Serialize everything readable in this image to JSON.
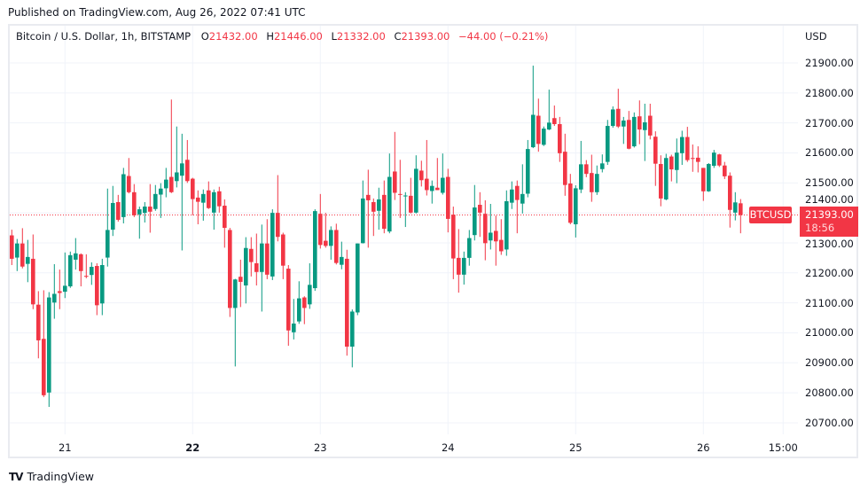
{
  "published": "Published on TradingView.com, Aug 26, 2022 07:41 UTC",
  "legend": {
    "symbol": "Bitcoin / U.S. Dollar, 1h, BITSTAMP",
    "o_label": "O",
    "o": "21432.00",
    "h_label": "H",
    "h": "21446.00",
    "l_label": "L",
    "l": "21332.00",
    "c_label": "C",
    "c": "21393.00",
    "change": "−44.00 (−0.21%)"
  },
  "price_axis": {
    "currency": "USD",
    "ticks": [
      "21900.00",
      "21800.00",
      "21700.00",
      "21600.00",
      "21500.00",
      "21400.00",
      "21300.00",
      "21200.00",
      "21100.00",
      "21000.00",
      "20900.00",
      "20800.00",
      "20700.00"
    ]
  },
  "time_axis": {
    "ticks": [
      {
        "label": "21",
        "bold": false
      },
      {
        "label": "22",
        "bold": true
      },
      {
        "label": "23",
        "bold": false
      },
      {
        "label": "24",
        "bold": false
      },
      {
        "label": "25",
        "bold": false
      },
      {
        "label": "26",
        "bold": false
      },
      {
        "label": "15:00",
        "bold": false
      }
    ]
  },
  "last_price": {
    "symbol_tag": "BTCUSD",
    "price": "21393.00",
    "countdown": "18:56",
    "value": 21393
  },
  "brand": "TradingView",
  "colors": {
    "up": "#089981",
    "down": "#f23645",
    "grid": "#f0f3fa",
    "text": "#131722"
  },
  "chart_data": {
    "type": "candlestick",
    "title": "Bitcoin / U.S. Dollar, 1h, BITSTAMP",
    "interval": "1h",
    "ylim": [
      20650,
      21950
    ],
    "grid": true,
    "ohlc_fields": [
      "open",
      "high",
      "low",
      "close"
    ],
    "candles": [
      [
        21325,
        21344,
        21226,
        21247
      ],
      [
        21251,
        21313,
        21206,
        21298
      ],
      [
        21298,
        21349,
        21215,
        21221
      ],
      [
        21230,
        21310,
        21169,
        21253
      ],
      [
        21247,
        21328,
        21079,
        21095
      ],
      [
        21094,
        21139,
        20915,
        20975
      ],
      [
        20980,
        21142,
        20786,
        20792
      ],
      [
        20801,
        21136,
        20753,
        21118
      ],
      [
        21101,
        21229,
        21047,
        21130
      ],
      [
        21139,
        21211,
        21079,
        21133
      ],
      [
        21137,
        21268,
        21116,
        21157
      ],
      [
        21155,
        21271,
        21150,
        21259
      ],
      [
        21244,
        21316,
        21211,
        21265
      ],
      [
        21262,
        21265,
        21155,
        21206
      ],
      [
        21190,
        21262,
        21182,
        21188
      ],
      [
        21193,
        21235,
        21160,
        21220
      ],
      [
        21223,
        21232,
        21059,
        21092
      ],
      [
        21098,
        21247,
        21059,
        21226
      ],
      [
        21251,
        21481,
        21221,
        21343
      ],
      [
        21344,
        21490,
        21323,
        21433
      ],
      [
        21436,
        21460,
        21371,
        21377
      ],
      [
        21386,
        21550,
        21365,
        21529
      ],
      [
        21523,
        21583,
        21465,
        21469
      ],
      [
        21469,
        21496,
        21386,
        21392
      ],
      [
        21395,
        21421,
        21314,
        21412
      ],
      [
        21400,
        21436,
        21368,
        21421
      ],
      [
        21421,
        21496,
        21334,
        21404
      ],
      [
        21413,
        21493,
        21407,
        21463
      ],
      [
        21461,
        21499,
        21383,
        21481
      ],
      [
        21482,
        21550,
        21452,
        21511
      ],
      [
        21520,
        21778,
        21466,
        21469
      ],
      [
        21506,
        21688,
        21485,
        21535
      ],
      [
        21524,
        21664,
        21275,
        21565
      ],
      [
        21577,
        21643,
        21500,
        21506
      ],
      [
        21514,
        21517,
        21392,
        21446
      ],
      [
        21451,
        21475,
        21362,
        21437
      ],
      [
        21434,
        21478,
        21374,
        21463
      ],
      [
        21475,
        21505,
        21413,
        21416
      ],
      [
        21401,
        21478,
        21344,
        21469
      ],
      [
        21472,
        21487,
        21401,
        21422
      ],
      [
        21424,
        21445,
        21284,
        21350
      ],
      [
        21343,
        21350,
        21053,
        21083
      ],
      [
        21083,
        21180,
        20888,
        21178
      ],
      [
        21187,
        21244,
        21086,
        21170
      ],
      [
        21158,
        21319,
        21098,
        21283
      ],
      [
        21280,
        21319,
        21188,
        21236
      ],
      [
        21232,
        21331,
        21158,
        21203
      ],
      [
        21203,
        21361,
        21071,
        21298
      ],
      [
        21298,
        21379,
        21179,
        21194
      ],
      [
        21188,
        21412,
        21176,
        21400
      ],
      [
        21400,
        21526,
        21305,
        21320
      ],
      [
        21328,
        21334,
        21179,
        21224
      ],
      [
        21214,
        21226,
        20957,
        21008
      ],
      [
        21002,
        21113,
        20978,
        21031
      ],
      [
        21038,
        21172,
        21030,
        21115
      ],
      [
        21118,
        21122,
        21029,
        21083
      ],
      [
        21095,
        21232,
        21080,
        21160
      ],
      [
        21149,
        21412,
        21140,
        21406
      ],
      [
        21397,
        21463,
        21281,
        21293
      ],
      [
        21307,
        21400,
        21284,
        21290
      ],
      [
        21290,
        21355,
        21244,
        21343
      ],
      [
        21343,
        21364,
        21228,
        21233
      ],
      [
        21227,
        21304,
        21212,
        21253
      ],
      [
        21247,
        21277,
        20924,
        20954
      ],
      [
        20954,
        21078,
        20885,
        21071
      ],
      [
        21068,
        21298,
        21059,
        21298
      ],
      [
        21299,
        21508,
        21298,
        21448
      ],
      [
        21460,
        21544,
        21284,
        21442
      ],
      [
        21436,
        21448,
        21323,
        21404
      ],
      [
        21407,
        21484,
        21344,
        21445
      ],
      [
        21460,
        21508,
        21332,
        21347
      ],
      [
        21338,
        21598,
        21332,
        21520
      ],
      [
        21538,
        21670,
        21443,
        21467
      ],
      [
        21463,
        21577,
        21383,
        21461
      ],
      [
        21457,
        21469,
        21353,
        21458
      ],
      [
        21457,
        21517,
        21398,
        21401
      ],
      [
        21401,
        21592,
        21398,
        21547
      ],
      [
        21541,
        21574,
        21488,
        21509
      ],
      [
        21514,
        21643,
        21458,
        21476
      ],
      [
        21473,
        21508,
        21431,
        21490
      ],
      [
        21484,
        21583,
        21476,
        21476
      ],
      [
        21467,
        21598,
        21461,
        21517
      ],
      [
        21520,
        21547,
        21335,
        21380
      ],
      [
        21394,
        21421,
        21179,
        21248
      ],
      [
        21250,
        21346,
        21134,
        21194
      ],
      [
        21194,
        21271,
        21161,
        21250
      ],
      [
        21250,
        21343,
        21224,
        21316
      ],
      [
        21326,
        21493,
        21308,
        21418
      ],
      [
        21427,
        21469,
        21320,
        21401
      ],
      [
        21397,
        21442,
        21242,
        21299
      ],
      [
        21308,
        21430,
        21278,
        21334
      ],
      [
        21340,
        21391,
        21224,
        21305
      ],
      [
        21310,
        21379,
        21260,
        21272
      ],
      [
        21278,
        21475,
        21257,
        21439
      ],
      [
        21434,
        21505,
        21413,
        21478
      ],
      [
        21490,
        21508,
        21332,
        21443
      ],
      [
        21431,
        21562,
        21398,
        21463
      ],
      [
        21464,
        21643,
        21452,
        21613
      ],
      [
        21619,
        21891,
        21616,
        21727
      ],
      [
        21724,
        21781,
        21604,
        21630
      ],
      [
        21627,
        21688,
        21623,
        21681
      ],
      [
        21678,
        21811,
        21676,
        21701
      ],
      [
        21716,
        21758,
        21690,
        21696
      ],
      [
        21696,
        21720,
        21570,
        21599
      ],
      [
        21604,
        21664,
        21457,
        21493
      ],
      [
        21498,
        21530,
        21362,
        21367
      ],
      [
        21362,
        21492,
        21318,
        21482
      ],
      [
        21478,
        21640,
        21466,
        21562
      ],
      [
        21562,
        21576,
        21519,
        21530
      ],
      [
        21533,
        21594,
        21437,
        21469
      ],
      [
        21469,
        21558,
        21460,
        21530
      ],
      [
        21546,
        21595,
        21535,
        21565
      ],
      [
        21570,
        21710,
        21560,
        21690
      ],
      [
        21690,
        21755,
        21684,
        21745
      ],
      [
        21747,
        21814,
        21683,
        21688
      ],
      [
        21688,
        21720,
        21630,
        21708
      ],
      [
        21710,
        21740,
        21612,
        21614
      ],
      [
        21622,
        21735,
        21618,
        21720
      ],
      [
        21722,
        21775,
        21629,
        21678
      ],
      [
        21676,
        21764,
        21573,
        21702
      ],
      [
        21724,
        21764,
        21645,
        21658
      ],
      [
        21654,
        21672,
        21490,
        21564
      ],
      [
        21563,
        21592,
        21422,
        21448
      ],
      [
        21445,
        21597,
        21442,
        21583
      ],
      [
        21588,
        21594,
        21505,
        21545
      ],
      [
        21543,
        21648,
        21499,
        21601
      ],
      [
        21599,
        21674,
        21560,
        21653
      ],
      [
        21653,
        21687,
        21570,
        21576
      ],
      [
        21583,
        21628,
        21537,
        21582
      ],
      [
        21584,
        21622,
        21535,
        21570
      ],
      [
        21550,
        21550,
        21440,
        21472
      ],
      [
        21472,
        21566,
        21470,
        21563
      ],
      [
        21557,
        21610,
        21550,
        21601
      ],
      [
        21595,
        21597,
        21553,
        21558
      ],
      [
        21558,
        21570,
        21513,
        21522
      ],
      [
        21524,
        21535,
        21351,
        21410
      ],
      [
        21401,
        21469,
        21375,
        21435
      ],
      [
        21432,
        21446,
        21332,
        21393
      ]
    ]
  }
}
